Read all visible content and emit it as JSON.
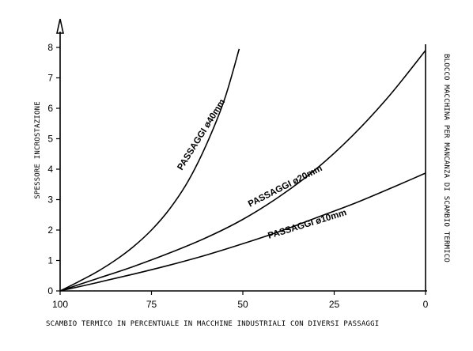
{
  "chart_data": {
    "type": "line",
    "xlabel": "SCAMBIO TERMICO IN PERCENTUALE IN MACCHINE INDUSTRIALI CON DIVERSI PASSAGGI",
    "ylabel": "SPESSORE INCROSTAZIONE",
    "ylabel_right": "BLOCCO MACCHINA PER MANCANZA DI SCAMBIO TERMICO",
    "x_ticks": [
      100,
      75,
      50,
      25,
      0
    ],
    "x_reversed": true,
    "xlim": [
      100,
      0
    ],
    "y_ticks": [
      0,
      1,
      2,
      3,
      4,
      5,
      6,
      7,
      8
    ],
    "ylim": [
      0,
      8
    ],
    "grid": false,
    "series": [
      {
        "name": "PASSAGGI ø40mm",
        "x": [
          100,
          95,
          90,
          85,
          80,
          75,
          70,
          65,
          60,
          55,
          51
        ],
        "y": [
          0,
          0.3,
          0.62,
          1.0,
          1.45,
          2.0,
          2.7,
          3.6,
          4.8,
          6.3,
          7.95
        ]
      },
      {
        "name": "PASSAGGI ø20mm",
        "x": [
          100,
          90,
          80,
          70,
          60,
          50,
          40,
          30,
          20,
          10,
          0
        ],
        "y": [
          0,
          0.4,
          0.8,
          1.25,
          1.75,
          2.35,
          3.1,
          4.0,
          5.1,
          6.4,
          7.9
        ]
      },
      {
        "name": "PASSAGGI ø10mm",
        "x": [
          100,
          90,
          80,
          70,
          60,
          50,
          40,
          30,
          20,
          10,
          0
        ],
        "y": [
          0,
          0.27,
          0.55,
          0.85,
          1.18,
          1.55,
          1.95,
          2.4,
          2.85,
          3.35,
          3.87
        ]
      }
    ]
  }
}
